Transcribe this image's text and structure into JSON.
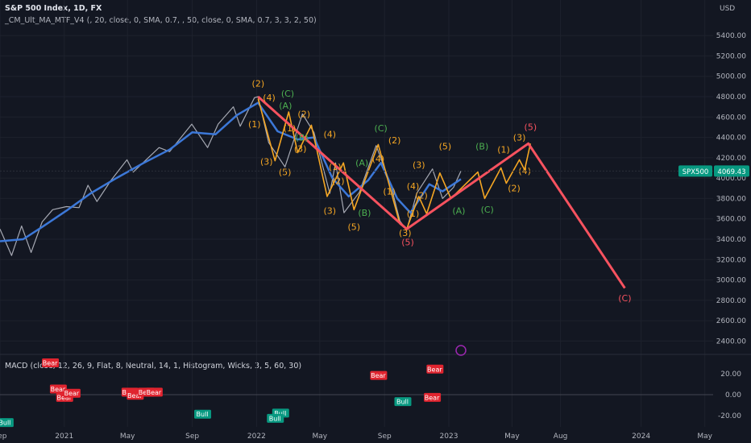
{
  "header": {
    "title": "S&P 500 Index, 1D, FX",
    "indicator": "_CM_Ult_MA_MTF_V4 (, 20, close, 0, SMA, 0.7, , 50, close, 0, SMA, 0.7, 3, 3, 2, 50)",
    "macd_label": "MACD (close, 12, 26, 9, Flat, 8, Neutral, 14, 1, Histogram, Wicks, 3, 5, 60, 30)"
  },
  "colors": {
    "background": "#131722",
    "price": "#a6a9b3",
    "ma": "#3c78d8",
    "wave_main": "#f7525f",
    "wave_minor": "#f5a623",
    "wave_green": "#4caf50",
    "price_tag": "#089981",
    "bull": "#089981",
    "bear": "#e0242f"
  },
  "chart_data": [
    {
      "type": "line",
      "title": "S&P 500 Index, 1D, FX",
      "ylabel": "USD",
      "ylim": [
        2300,
        5650
      ],
      "y_ticks": [
        "2400.00",
        "2600.00",
        "2800.00",
        "3000.00",
        "3200.00",
        "3400.00",
        "3600.00",
        "3800.00",
        "4000.00",
        "4200.00",
        "4400.00",
        "4600.00",
        "4800.00",
        "5000.00",
        "5200.00",
        "5400.00"
      ],
      "x_ticks": [
        "Sep",
        "2021",
        "May",
        "Sep",
        "2022",
        "May",
        "Sep",
        "2023",
        "May",
        "Aug",
        "2024",
        "May"
      ],
      "last_price": {
        "symbol": "SPX500",
        "value": "4069.43"
      },
      "series": [
        {
          "values": [
            {
              "d": "2020-09-01",
              "v": 3500
            },
            {
              "d": "2020-09-23",
              "v": 3240
            },
            {
              "d": "2020-10-12",
              "v": 3530
            },
            {
              "d": "2020-10-30",
              "v": 3270
            },
            {
              "d": "2020-11-20",
              "v": 3570
            },
            {
              "d": "2020-12-10",
              "v": 3690
            },
            {
              "d": "2021-01-05",
              "v": 3720
            },
            {
              "d": "2021-01-29",
              "v": 3710
            },
            {
              "d": "2021-02-15",
              "v": 3930
            },
            {
              "d": "2021-03-04",
              "v": 3770
            },
            {
              "d": "2021-03-31",
              "v": 3980
            },
            {
              "d": "2021-04-30",
              "v": 4180
            },
            {
              "d": "2021-05-12",
              "v": 4060
            },
            {
              "d": "2021-06-30",
              "v": 4300
            },
            {
              "d": "2021-07-20",
              "v": 4260
            },
            {
              "d": "2021-08-31",
              "v": 4530
            },
            {
              "d": "2021-09-30",
              "v": 4300
            },
            {
              "d": "2021-10-20",
              "v": 4530
            },
            {
              "d": "2021-11-18",
              "v": 4700
            },
            {
              "d": "2021-12-01",
              "v": 4510
            },
            {
              "d": "2021-12-28",
              "v": 4790
            },
            {
              "d": "2022-01-04",
              "v": 4800
            },
            {
              "d": "2022-01-24",
              "v": 4350
            },
            {
              "d": "2022-02-24",
              "v": 4110
            },
            {
              "d": "2022-03-29",
              "v": 4630
            },
            {
              "d": "2022-04-20",
              "v": 4450
            },
            {
              "d": "2022-05-20",
              "v": 3850
            },
            {
              "d": "2022-05-31",
              "v": 4150
            },
            {
              "d": "2022-06-16",
              "v": 3660
            },
            {
              "d": "2022-07-15",
              "v": 3860
            },
            {
              "d": "2022-08-16",
              "v": 4320
            },
            {
              "d": "2022-09-13",
              "v": 3930
            },
            {
              "d": "2022-09-30",
              "v": 3580
            },
            {
              "d": "2022-10-13",
              "v": 3490
            },
            {
              "d": "2022-11-01",
              "v": 3850
            },
            {
              "d": "2022-12-01",
              "v": 4090
            },
            {
              "d": "2022-12-20",
              "v": 3800
            },
            {
              "d": "2023-01-10",
              "v": 3910
            },
            {
              "d": "2023-01-24",
              "v": 4069
            }
          ]
        },
        {
          "values": [
            {
              "d": "2020-09-01",
              "v": 3380
            },
            {
              "d": "2020-10-15",
              "v": 3400
            },
            {
              "d": "2020-11-20",
              "v": 3520
            },
            {
              "d": "2021-01-05",
              "v": 3680
            },
            {
              "d": "2021-02-20",
              "v": 3850
            },
            {
              "d": "2021-04-10",
              "v": 4000
            },
            {
              "d": "2021-06-01",
              "v": 4150
            },
            {
              "d": "2021-07-20",
              "v": 4280
            },
            {
              "d": "2021-09-01",
              "v": 4450
            },
            {
              "d": "2021-10-15",
              "v": 4430
            },
            {
              "d": "2021-11-25",
              "v": 4620
            },
            {
              "d": "2022-01-04",
              "v": 4740
            },
            {
              "d": "2022-02-10",
              "v": 4460
            },
            {
              "d": "2022-03-20",
              "v": 4380
            },
            {
              "d": "2022-04-20",
              "v": 4400
            },
            {
              "d": "2022-05-25",
              "v": 4000
            },
            {
              "d": "2022-06-25",
              "v": 3820
            },
            {
              "d": "2022-08-01",
              "v": 3980
            },
            {
              "d": "2022-08-25",
              "v": 4150
            },
            {
              "d": "2022-09-25",
              "v": 3800
            },
            {
              "d": "2022-10-20",
              "v": 3660
            },
            {
              "d": "2022-11-25",
              "v": 3940
            },
            {
              "d": "2022-12-20",
              "v": 3870
            },
            {
              "d": "2023-01-24",
              "v": 3990
            }
          ]
        },
        {
          "values": [
            {
              "d": "2022-01-04",
              "v": 4800
            },
            {
              "d": "2022-10-13",
              "v": 3500
            },
            {
              "d": "2023-06-01",
              "v": 4340
            },
            {
              "d": "2023-12-01",
              "v": 2920
            }
          ]
        },
        {
          "values": [
            {
              "d": "2022-01-04",
              "v": 4780
            },
            {
              "d": "2022-02-05",
              "v": 4170
            },
            {
              "d": "2022-03-03",
              "v": 4650
            },
            {
              "d": "2022-03-20",
              "v": 4250
            },
            {
              "d": "2022-04-15",
              "v": 4520
            },
            {
              "d": "2022-05-15",
              "v": 3820
            },
            {
              "d": "2022-06-15",
              "v": 4150
            },
            {
              "d": "2022-07-05",
              "v": 3690
            },
            {
              "d": "2022-08-20",
              "v": 4330
            },
            {
              "d": "2022-09-30",
              "v": 3550
            },
            {
              "d": "2022-10-13",
              "v": 3500
            }
          ]
        },
        {
          "values": [
            {
              "d": "2022-10-13",
              "v": 3500
            },
            {
              "d": "2022-11-05",
              "v": 3820
            },
            {
              "d": "2022-11-20",
              "v": 3650
            },
            {
              "d": "2022-12-15",
              "v": 4050
            },
            {
              "d": "2023-01-05",
              "v": 3800
            },
            {
              "d": "2023-02-25",
              "v": 4060
            },
            {
              "d": "2023-03-10",
              "v": 3800
            },
            {
              "d": "2023-04-10",
              "v": 4100
            },
            {
              "d": "2023-04-20",
              "v": 3950
            },
            {
              "d": "2023-05-15",
              "v": 4180
            },
            {
              "d": "2023-05-25",
              "v": 4080
            },
            {
              "d": "2023-06-05",
              "v": 4340
            }
          ]
        }
      ],
      "annotations": [
        {
          "text": "(2)",
          "d": "2022-01-04",
          "v": 4900,
          "c": "minor"
        },
        {
          "text": "(4)",
          "d": "2022-01-25",
          "v": 4760,
          "c": "minor"
        },
        {
          "text": "(1)",
          "d": "2021-12-28",
          "v": 4500,
          "c": "minor"
        },
        {
          "text": "(3)",
          "d": "2022-01-20",
          "v": 4130,
          "c": "minor"
        },
        {
          "text": "(5)",
          "d": "2022-02-24",
          "v": 4030,
          "c": "minor"
        },
        {
          "text": "(C)",
          "d": "2022-03-01",
          "v": 4800,
          "c": "green"
        },
        {
          "text": "(A)",
          "d": "2022-02-25",
          "v": 4680,
          "c": "green"
        },
        {
          "text": "(2)",
          "d": "2022-04-01",
          "v": 4600,
          "c": "minor"
        },
        {
          "text": "(1)",
          "d": "2022-03-05",
          "v": 4460,
          "c": "minor"
        },
        {
          "text": "(B)",
          "d": "2022-03-28",
          "v": 4370,
          "c": "green"
        },
        {
          "text": "(3)",
          "d": "2022-03-25",
          "v": 4260,
          "c": "minor"
        },
        {
          "text": "(4)",
          "d": "2022-05-20",
          "v": 4400,
          "c": "minor"
        },
        {
          "text": "(1)",
          "d": "2022-05-30",
          "v": 4080,
          "c": "minor"
        },
        {
          "text": "(A)",
          "d": "2022-07-20",
          "v": 4120,
          "c": "green"
        },
        {
          "text": "(2)",
          "d": "2022-06-05",
          "v": 3940,
          "c": "minor"
        },
        {
          "text": "(3)",
          "d": "2022-05-20",
          "v": 3650,
          "c": "minor"
        },
        {
          "text": "(B)",
          "d": "2022-07-25",
          "v": 3630,
          "c": "green"
        },
        {
          "text": "(5)",
          "d": "2022-07-05",
          "v": 3490,
          "c": "minor"
        },
        {
          "text": "(C)",
          "d": "2022-08-25",
          "v": 4460,
          "c": "green"
        },
        {
          "text": "(2)",
          "d": "2022-09-20",
          "v": 4340,
          "c": "minor"
        },
        {
          "text": "(4)",
          "d": "2022-08-20",
          "v": 4160,
          "c": "minor"
        },
        {
          "text": "(1)",
          "d": "2022-09-10",
          "v": 3840,
          "c": "minor"
        },
        {
          "text": "(3)",
          "d": "2022-11-05",
          "v": 4100,
          "c": "minor"
        },
        {
          "text": "(4)",
          "d": "2022-10-25",
          "v": 3890,
          "c": "minor"
        },
        {
          "text": "(2)",
          "d": "2022-11-10",
          "v": 3800,
          "c": "minor"
        },
        {
          "text": "(5)",
          "d": "2022-12-25",
          "v": 4280,
          "c": "minor"
        },
        {
          "text": "(B)",
          "d": "2023-03-05",
          "v": 4280,
          "c": "green"
        },
        {
          "text": "(1)",
          "d": "2022-10-25",
          "v": 3620,
          "c": "minor"
        },
        {
          "text": "(3)",
          "d": "2022-10-10",
          "v": 3430,
          "c": "minor"
        },
        {
          "text": "(5)",
          "d": "2022-10-15",
          "v": 3340,
          "c": "main"
        },
        {
          "text": "(A)",
          "d": "2023-01-20",
          "v": 3650,
          "c": "green"
        },
        {
          "text": "(C)",
          "d": "2023-03-15",
          "v": 3660,
          "c": "green"
        },
        {
          "text": "(1)",
          "d": "2023-04-15",
          "v": 4250,
          "c": "minor"
        },
        {
          "text": "(3)",
          "d": "2023-05-15",
          "v": 4370,
          "c": "minor"
        },
        {
          "text": "(5)",
          "d": "2023-06-05",
          "v": 4470,
          "c": "main"
        },
        {
          "text": "(2)",
          "d": "2023-05-05",
          "v": 3870,
          "c": "minor"
        },
        {
          "text": "(4)",
          "d": "2023-05-25",
          "v": 4040,
          "c": "minor"
        },
        {
          "text": "(C)",
          "d": "2023-12-01",
          "v": 2790,
          "c": "main"
        }
      ]
    },
    {
      "type": "bar",
      "title": "MACD",
      "ylim": [
        -30,
        35
      ],
      "y_ticks": [
        "20.00",
        "0.00",
        "-20.00"
      ],
      "signals": [
        {
          "text": "Bear",
          "d": "2020-12-05",
          "v": 30
        },
        {
          "text": "Bear",
          "d": "2021-01-01",
          "v": -3
        },
        {
          "text": "Bear",
          "d": "2020-12-20",
          "v": 5
        },
        {
          "text": "Bear",
          "d": "2021-01-15",
          "v": 1
        },
        {
          "text": "Bear",
          "d": "2021-05-05",
          "v": 2
        },
        {
          "text": "Bear",
          "d": "2021-05-15",
          "v": -1
        },
        {
          "text": "Bear",
          "d": "2021-06-05",
          "v": 2
        },
        {
          "text": "Bear",
          "d": "2021-06-20",
          "v": 2
        },
        {
          "text": "Bear",
          "d": "2022-08-20",
          "v": 18
        },
        {
          "text": "Bear",
          "d": "2022-12-05",
          "v": 24
        },
        {
          "text": "Bear",
          "d": "2022-11-30",
          "v": -3
        },
        {
          "text": "Bull",
          "d": "2020-09-10",
          "v": -27
        },
        {
          "text": "Bull",
          "d": "2021-09-20",
          "v": -19
        },
        {
          "text": "Bull",
          "d": "2022-02-15",
          "v": -18
        },
        {
          "text": "Bull",
          "d": "2022-02-05",
          "v": -23
        },
        {
          "text": "Bull",
          "d": "2022-10-05",
          "v": -7
        }
      ]
    }
  ]
}
